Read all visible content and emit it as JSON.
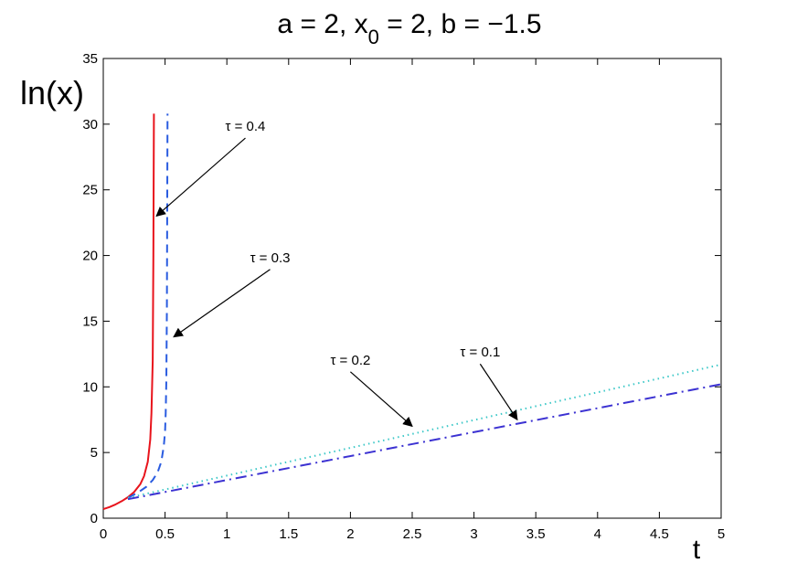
{
  "chart_data": {
    "type": "line",
    "title": {
      "prefix": "a = 2, x",
      "subscript": "0",
      "suffix": " = 2, b = −1.5"
    },
    "xlabel": "t",
    "ylabel": "ln(x)",
    "xlim": [
      0,
      5
    ],
    "ylim": [
      0,
      35
    ],
    "xticks": [
      0,
      0.5,
      1,
      1.5,
      2,
      2.5,
      3,
      3.5,
      4,
      4.5,
      5
    ],
    "xtick_labels": [
      "0",
      "0.5",
      "1",
      "1.5",
      "2",
      "2.5",
      "3",
      "3.5",
      "4",
      "4.5",
      "5"
    ],
    "yticks": [
      0,
      5,
      10,
      15,
      20,
      25,
      30,
      35
    ],
    "ytick_labels": [
      "0",
      "5",
      "10",
      "15",
      "20",
      "25",
      "30",
      "35"
    ],
    "grid": false,
    "series": [
      {
        "style": "solid",
        "color": "#e8141c",
        "x": [
          0,
          0.05,
          0.1,
          0.15,
          0.2,
          0.25,
          0.3,
          0.33,
          0.36,
          0.38,
          0.39,
          0.4,
          0.405,
          0.41
        ],
        "y": [
          0.69,
          0.85,
          1.05,
          1.3,
          1.6,
          2.0,
          2.6,
          3.2,
          4.3,
          6.0,
          8.0,
          12.0,
          20.0,
          30.8
        ]
      },
      {
        "style": "dashed",
        "color": "#2a5ce0",
        "x": [
          0.2,
          0.28,
          0.35,
          0.4,
          0.44,
          0.47,
          0.49,
          0.5,
          0.505,
          0.51,
          0.515,
          0.52
        ],
        "y": [
          1.55,
          1.95,
          2.4,
          2.9,
          3.5,
          4.3,
          5.5,
          6.6,
          8.0,
          10.5,
          16.0,
          30.8
        ]
      },
      {
        "style": "dotted",
        "color": "#3cc8c8",
        "x": [
          0.2,
          5
        ],
        "y": [
          1.55,
          11.7
        ]
      },
      {
        "style": "dashdot",
        "color": "#3c32d2",
        "x": [
          0.2,
          5
        ],
        "y": [
          1.45,
          10.2
        ]
      }
    ],
    "annotations": [
      {
        "text": "τ = 0.4",
        "label_xy": [
          1.15,
          29.5
        ],
        "tip_xy": [
          0.43,
          23.0
        ]
      },
      {
        "text": "τ = 0.3",
        "label_xy": [
          1.35,
          19.5
        ],
        "tip_xy": [
          0.57,
          13.8
        ]
      },
      {
        "text": "τ = 0.2",
        "label_xy": [
          2.0,
          11.7
        ],
        "tip_xy": [
          2.5,
          7.0
        ]
      },
      {
        "text": "τ = 0.1",
        "label_xy": [
          3.05,
          12.3
        ],
        "tip_xy": [
          3.35,
          7.5
        ]
      }
    ]
  }
}
